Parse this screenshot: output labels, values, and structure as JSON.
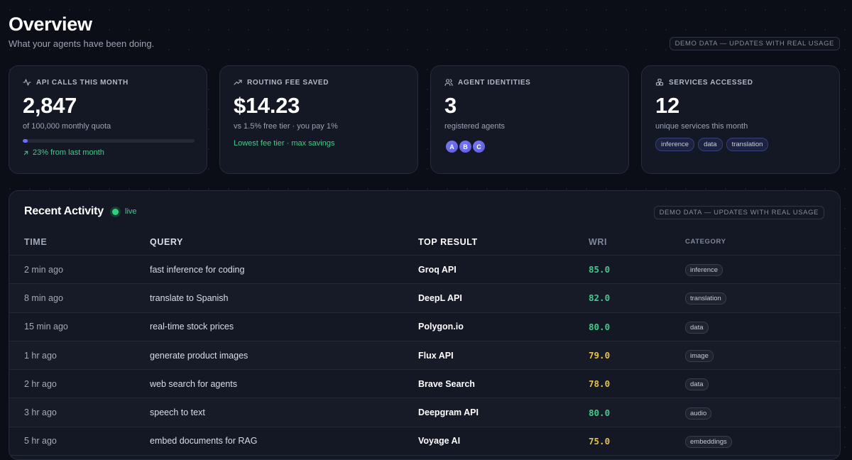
{
  "header": {
    "title": "Overview",
    "subtitle": "What your agents have been doing.",
    "demo_badge": "DEMO DATA — UPDATES WITH REAL USAGE"
  },
  "cards": {
    "api_calls": {
      "icon": "activity-icon",
      "label": "API CALLS THIS MONTH",
      "value": "2,847",
      "sub": "of 100,000 monthly quota",
      "progress_fraction": 0.03,
      "trend": "23% from last month"
    },
    "routing_fee": {
      "icon": "trending-up-icon",
      "label": "ROUTING FEE SAVED",
      "value": "$14.23",
      "sub": "vs 1.5% free tier · you pay 1%",
      "note": "Lowest fee tier · max savings"
    },
    "agents": {
      "icon": "users-icon",
      "label": "AGENT IDENTITIES",
      "value": "3",
      "sub": "registered agents",
      "avatars": [
        "A",
        "B",
        "C"
      ]
    },
    "services": {
      "icon": "boxes-icon",
      "label": "SERVICES ACCESSED",
      "value": "12",
      "sub": "unique services this month",
      "tags": [
        "inference",
        "data",
        "translation"
      ]
    }
  },
  "activity": {
    "title": "Recent Activity",
    "live_label": "live",
    "demo_badge": "DEMO DATA — UPDATES WITH REAL USAGE",
    "columns": [
      "TIME",
      "QUERY",
      "TOP RESULT",
      "WRI",
      "CATEGORY"
    ],
    "rows": [
      {
        "time": "2 min ago",
        "query": "fast inference for coding",
        "result": "Groq API",
        "wri": "85.0",
        "category": "inference"
      },
      {
        "time": "8 min ago",
        "query": "translate to Spanish",
        "result": "DeepL API",
        "wri": "82.0",
        "category": "translation"
      },
      {
        "time": "15 min ago",
        "query": "real-time stock prices",
        "result": "Polygon.io",
        "wri": "80.0",
        "category": "data"
      },
      {
        "time": "1 hr ago",
        "query": "generate product images",
        "result": "Flux API",
        "wri": "79.0",
        "category": "image"
      },
      {
        "time": "2 hr ago",
        "query": "web search for agents",
        "result": "Brave Search",
        "wri": "78.0",
        "category": "data"
      },
      {
        "time": "3 hr ago",
        "query": "speech to text",
        "result": "Deepgram API",
        "wri": "80.0",
        "category": "audio"
      },
      {
        "time": "5 hr ago",
        "query": "embed documents for RAG",
        "result": "Voyage AI",
        "wri": "75.0",
        "category": "embeddings"
      }
    ]
  },
  "colors": {
    "background": "#0b0e16",
    "card": "#141824",
    "accent": "#6f6ff0",
    "positive": "#45c98a",
    "wri_high": "#45c98a",
    "wri_mid": "#e6c14a"
  }
}
